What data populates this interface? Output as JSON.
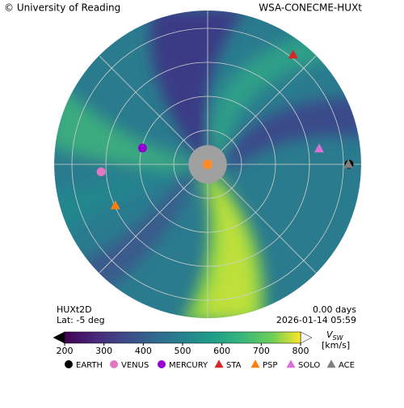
{
  "chart_data": {
    "type": "polar",
    "corner_left": "© University of Reading",
    "corner_right": "WSA-CONECME-HUXt",
    "model": "HUXt2D",
    "lat": "Lat:  -5 deg",
    "elapsed": "0.00 days",
    "time": "2026-01-14 05:59",
    "rlim": [
      0,
      240
    ],
    "inner_boundary": 30,
    "clim": [
      200,
      800
    ],
    "cticks": [
      200,
      300,
      400,
      500,
      600,
      700,
      800
    ],
    "colorbar_label": {
      "symbol": "V",
      "subscript": "SW",
      "units": "[km/s]"
    },
    "bodies": [
      {
        "name": "EARTH",
        "color": "#000000",
        "marker": "circle",
        "lon": 0,
        "r": 221
      },
      {
        "name": "VENUS",
        "color": "#e377c2",
        "marker": "circle",
        "lon": 184,
        "r": 167
      },
      {
        "name": "MERCURY",
        "color": "#9400d3",
        "marker": "circle",
        "lon": 166,
        "r": 105
      },
      {
        "name": "STA",
        "color": "#d62728",
        "marker": "triangle",
        "lon": 52,
        "r": 217
      },
      {
        "name": "PSP",
        "color": "#ff7f0e",
        "marker": "triangle",
        "lon": 204,
        "r": 158
      },
      {
        "name": "SOLO",
        "color": "#da70d6",
        "marker": "triangle",
        "lon": 8,
        "r": 176
      },
      {
        "name": "ACE",
        "color": "#7f7f7f",
        "marker": "triangle",
        "lon": 0,
        "r": 220
      }
    ]
  }
}
